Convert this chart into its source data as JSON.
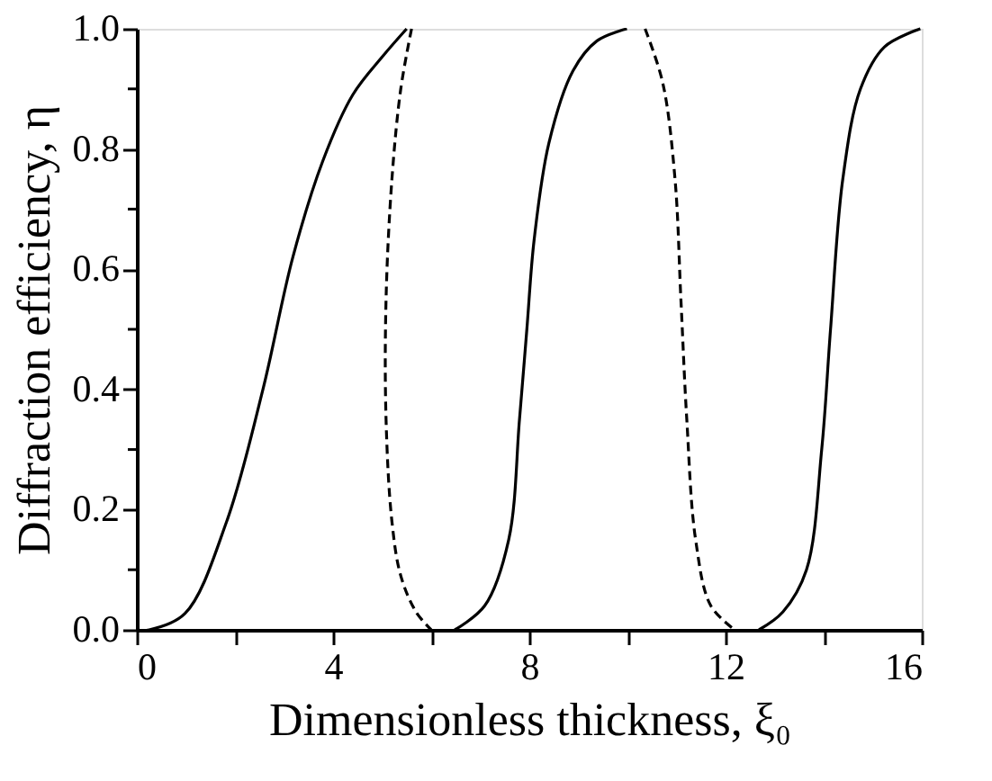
{
  "chart_data": {
    "type": "line",
    "xlabel": "Dimensionless thickness, ξ₀",
    "ylabel": "Diffraction efficiency, η",
    "xlim": [
      0,
      16
    ],
    "ylim": [
      0,
      1
    ],
    "xticks": [
      0,
      {
        "value": 2,
        "label": null
      },
      4,
      {
        "value": 6,
        "label": null
      },
      8,
      {
        "value": 10,
        "label": null
      },
      12,
      {
        "value": 14,
        "label": null
      },
      16
    ],
    "yticks": [
      "0.0",
      {
        "value": 0.1,
        "label": null
      },
      0.2,
      {
        "value": 0.3,
        "label": null
      },
      0.4,
      {
        "value": 0.5,
        "label": null
      },
      0.6,
      {
        "value": 0.7,
        "label": null
      },
      0.8,
      {
        "value": 0.9,
        "label": null
      },
      {
        "value": 1,
        "label": "1.0"
      }
    ],
    "grid": false,
    "marker": "none",
    "series": [
      {
        "color": "#000000",
        "line_style": "solid",
        "x": [
          0,
          0.25,
          0.98,
          1.83,
          2.57,
          3.18,
          3.79,
          4.4,
          5.02,
          5.5
        ],
        "values": [
          0,
          0,
          0.027,
          0.18,
          0.4,
          0.62,
          0.78,
          0.89,
          0.955,
          1.0
        ]
      },
      {
        "color": "#000000",
        "line_style": "dashed",
        "x": [
          5.6,
          5.38,
          5.2,
          5.08,
          5.08,
          5.2,
          5.38,
          5.69,
          6.0
        ],
        "values": [
          1.0,
          0.9,
          0.75,
          0.55,
          0.35,
          0.18,
          0.09,
          0.03,
          0.0
        ]
      },
      {
        "color": "#000000",
        "line_style": "solid",
        "x": [
          6.48,
          7.09,
          7.58,
          7.8,
          7.95,
          8.1,
          8.4,
          8.89,
          9.38,
          9.99
        ],
        "values": [
          0,
          0.04,
          0.15,
          0.35,
          0.5,
          0.65,
          0.81,
          0.93,
          0.98,
          1.0
        ]
      },
      {
        "color": "#000000",
        "line_style": "dashed",
        "x": [
          10.36,
          10.72,
          10.97,
          11.09,
          11.21,
          11.39,
          11.7,
          12.19
        ],
        "values": [
          1.0,
          0.91,
          0.75,
          0.55,
          0.35,
          0.15,
          0.04,
          0.0
        ]
      },
      {
        "color": "#000000",
        "line_style": "solid",
        "x": [
          12.68,
          13.17,
          13.65,
          13.96,
          14.14,
          14.39,
          14.75,
          15.24,
          15.97
        ],
        "values": [
          0,
          0.03,
          0.1,
          0.3,
          0.5,
          0.75,
          0.9,
          0.97,
          1.0
        ]
      }
    ]
  }
}
